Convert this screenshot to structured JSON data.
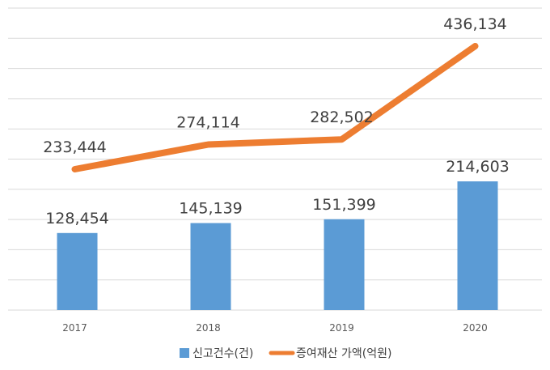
{
  "chart_data": {
    "type": "bar",
    "categories": [
      "2017",
      "2018",
      "2019",
      "2020"
    ],
    "series": [
      {
        "name": "신고건수(건)",
        "type": "bar",
        "values": [
          128454,
          145139,
          151399,
          214603
        ],
        "labels": [
          "128,454",
          "145,139",
          "151,399",
          "214,603"
        ],
        "color": "#5B9BD5"
      },
      {
        "name": "증여재산 가액(억원)",
        "type": "line",
        "values": [
          233444,
          274114,
          282502,
          436134
        ],
        "labels": [
          "233,444",
          "274,114",
          "282,502",
          "436,134"
        ],
        "color": "#ED7D31"
      }
    ],
    "grid": true,
    "legend": "bottom",
    "gridline_color": "#D9D9D9"
  }
}
